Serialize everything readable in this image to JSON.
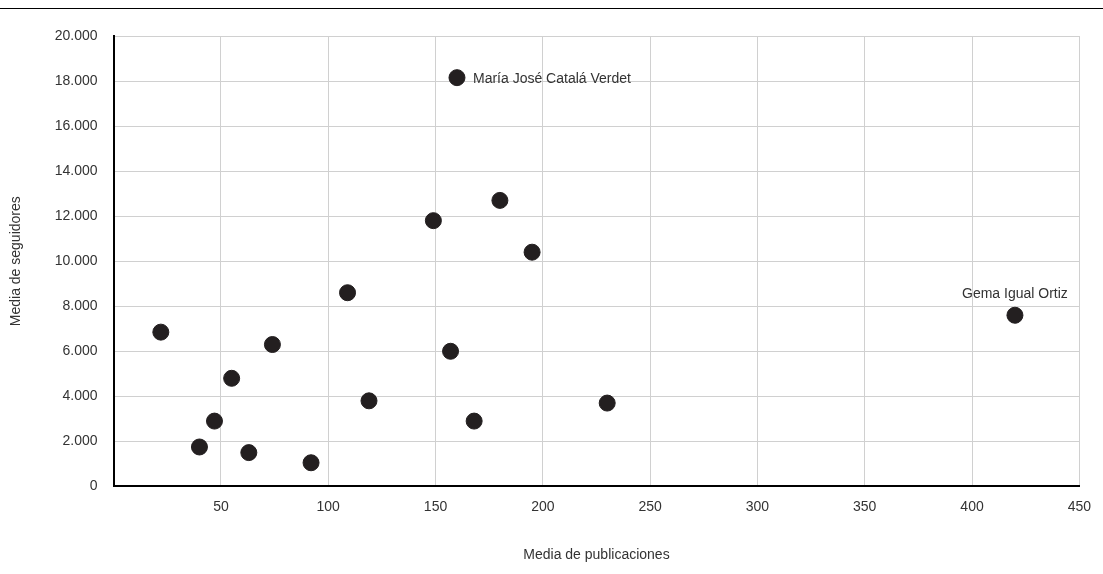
{
  "chart_data": {
    "type": "scatter",
    "xlabel": "Media de publicaciones",
    "ylabel": "Media de seguidores",
    "x": [
      22,
      40,
      47,
      55,
      63,
      74,
      92,
      109,
      119,
      149,
      160,
      157,
      168,
      180,
      195,
      230,
      420
    ],
    "series": [
      {
        "color": "#231f20",
        "values": [
          6850,
          1750,
          2900,
          4800,
          1500,
          6300,
          1050,
          8600,
          3800,
          11800,
          18150,
          6000,
          2900,
          12700,
          10400,
          3700,
          7600
        ]
      }
    ],
    "xlim": [
      0,
      450
    ],
    "xticks": [
      50,
      100,
      150,
      200,
      250,
      300,
      350,
      400,
      450
    ],
    "ylim": [
      0,
      20000
    ],
    "yticks": [
      {
        "value": 0,
        "label": "0"
      },
      {
        "value": 2000,
        "label": "2.000"
      },
      {
        "value": 4000,
        "label": "4.000"
      },
      {
        "value": 6000,
        "label": "6.000"
      },
      {
        "value": 8000,
        "label": "8.000"
      },
      {
        "value": 10000,
        "label": "10.000"
      },
      {
        "value": 12000,
        "label": "12.000"
      },
      {
        "value": 14000,
        "label": "14.000"
      },
      {
        "value": 16000,
        "label": "16.000"
      },
      {
        "value": 18000,
        "label": "18.000"
      },
      {
        "value": 20000,
        "label": "20.000"
      }
    ],
    "annotations": [
      {
        "text": "María José Catalá Verdet",
        "x": 160,
        "y": 18150
      },
      {
        "text": "Gema Igual Ortiz",
        "x": 420,
        "y": 7600
      }
    ],
    "grid": true,
    "legend": false,
    "marker": "circle"
  }
}
